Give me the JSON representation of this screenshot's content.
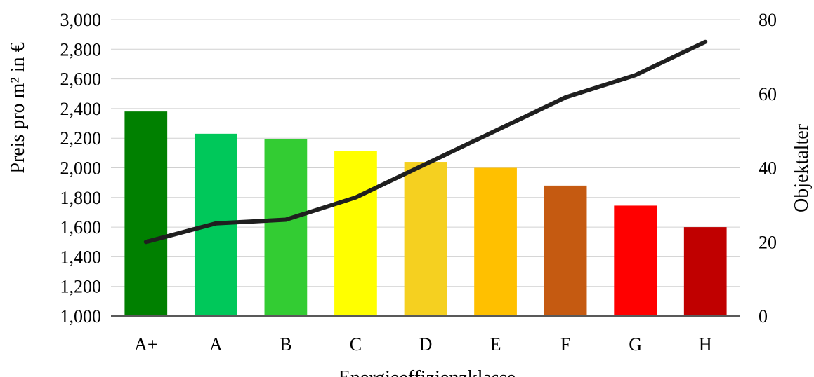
{
  "chart_data": {
    "type": "bar",
    "categories": [
      "A+",
      "A",
      "B",
      "C",
      "D",
      "E",
      "F",
      "G",
      "H"
    ],
    "series": [
      {
        "type": "bar",
        "axis": "left",
        "values": [
          2380,
          2230,
          2195,
          2115,
          2040,
          2000,
          1880,
          1745,
          1600
        ],
        "colors": [
          "#008000",
          "#00c85a",
          "#33cc33",
          "#ffff00",
          "#f5d020",
          "#ffc000",
          "#c55a11",
          "#ff0000",
          "#c00000"
        ]
      },
      {
        "type": "line",
        "axis": "right",
        "values": [
          20,
          25,
          26,
          32,
          41,
          50,
          59,
          65,
          74
        ],
        "color": "#1f1f1f"
      }
    ],
    "xlabel": "Energieeffizienzklasse",
    "ylabel": "Preis pro m² in €",
    "y2label": "Objektalter",
    "ylim": [
      1000,
      3000
    ],
    "y2lim": [
      0,
      80
    ],
    "yticks": [
      "1,000",
      "1,200",
      "1,400",
      "1,600",
      "1,800",
      "2,000",
      "2,200",
      "2,400",
      "2,600",
      "2,800",
      "3,000"
    ],
    "y2ticks": [
      "0",
      "20",
      "40",
      "60",
      "80"
    ],
    "grid": true
  }
}
